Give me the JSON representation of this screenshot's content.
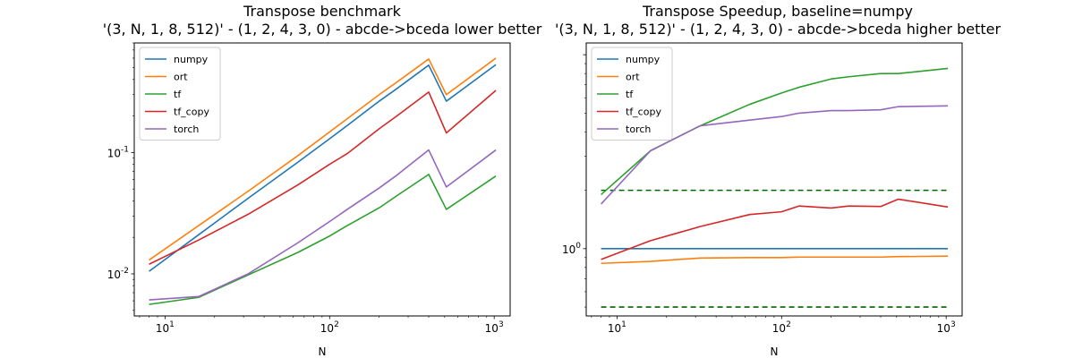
{
  "chart_data": [
    {
      "type": "line",
      "title": "Transpose benchmark\n'(3, N, 1, 8, 512)' - (1, 2, 4, 3, 0) - abcde->bceda lower better",
      "xlabel": "N",
      "ylabel": "",
      "xscale": "log",
      "yscale": "log",
      "xlim": [
        6.5,
        1250
      ],
      "ylim": [
        0.0045,
        0.8
      ],
      "x_ticks": [
        10,
        100,
        1000
      ],
      "x_tick_labels": [
        "10^1",
        "10^2",
        "10^3"
      ],
      "y_ticks": [
        0.01,
        0.1
      ],
      "y_tick_labels": [
        "10^-2",
        "10^-1"
      ],
      "legend": "top-left",
      "grid": false,
      "series": [
        {
          "name": "numpy",
          "color": "#1f77b4",
          "x": [
            8,
            16,
            32,
            64,
            100,
            128,
            200,
            256,
            400,
            512,
            1024
          ],
          "y": [
            0.0105,
            0.021,
            0.042,
            0.083,
            0.13,
            0.167,
            0.265,
            0.336,
            0.525,
            0.265,
            0.53
          ]
        },
        {
          "name": "ort",
          "color": "#ff7f0e",
          "x": [
            8,
            16,
            32,
            64,
            100,
            128,
            200,
            256,
            400,
            512,
            1024
          ],
          "y": [
            0.013,
            0.025,
            0.048,
            0.094,
            0.148,
            0.19,
            0.3,
            0.38,
            0.59,
            0.3,
            0.6
          ]
        },
        {
          "name": "tf",
          "color": "#2ca02c",
          "x": [
            8,
            16,
            32,
            64,
            100,
            128,
            200,
            256,
            400,
            512,
            1024
          ],
          "y": [
            0.0056,
            0.0064,
            0.0098,
            0.015,
            0.0205,
            0.025,
            0.035,
            0.044,
            0.066,
            0.034,
            0.064
          ]
        },
        {
          "name": "tf_copy",
          "color": "#d62728",
          "x": [
            8,
            16,
            32,
            64,
            100,
            128,
            200,
            256,
            400,
            512,
            1024
          ],
          "y": [
            0.012,
            0.019,
            0.031,
            0.054,
            0.08,
            0.098,
            0.157,
            0.2,
            0.315,
            0.145,
            0.325
          ]
        },
        {
          "name": "torch",
          "color": "#9467bd",
          "x": [
            8,
            16,
            32,
            64,
            100,
            128,
            200,
            256,
            400,
            512,
            1024
          ],
          "y": [
            0.0061,
            0.0065,
            0.01,
            0.018,
            0.027,
            0.034,
            0.051,
            0.065,
            0.105,
            0.052,
            0.105
          ]
        }
      ]
    },
    {
      "type": "line",
      "title": "Transpose Speedup, baseline=numpy\n'(3, N, 1, 8, 512)' - (1, 2, 4, 3, 0) - abcde->bceda higher better",
      "xlabel": "N",
      "ylabel": "",
      "xscale": "log",
      "yscale": "log",
      "xlim": [
        6.5,
        1250
      ],
      "ylim": [
        0.45,
        11.5
      ],
      "x_ticks": [
        10,
        100,
        1000
      ],
      "x_tick_labels": [
        "10^1",
        "10^2",
        "10^3"
      ],
      "y_ticks": [
        1
      ],
      "y_tick_labels": [
        "10^0"
      ],
      "legend": "top-left",
      "grid": false,
      "reference_lines": [
        {
          "y": 2.0,
          "color": "#006400",
          "style": "dashed"
        },
        {
          "y": 0.5,
          "color": "#006400",
          "style": "dashed"
        }
      ],
      "series": [
        {
          "name": "numpy",
          "color": "#1f77b4",
          "x": [
            8,
            1024
          ],
          "y": [
            1.0,
            1.0
          ]
        },
        {
          "name": "ort",
          "color": "#ff7f0e",
          "x": [
            8,
            16,
            32,
            64,
            100,
            128,
            200,
            256,
            400,
            512,
            1024
          ],
          "y": [
            0.84,
            0.86,
            0.895,
            0.9,
            0.9,
            0.905,
            0.905,
            0.905,
            0.905,
            0.91,
            0.915
          ]
        },
        {
          "name": "tf",
          "color": "#2ca02c",
          "x": [
            8,
            16,
            32,
            64,
            100,
            128,
            200,
            256,
            400,
            512,
            1024
          ],
          "y": [
            1.9,
            3.2,
            4.3,
            5.55,
            6.35,
            6.8,
            7.5,
            7.7,
            8.0,
            8.0,
            8.5
          ]
        },
        {
          "name": "tf_copy",
          "color": "#d62728",
          "x": [
            8,
            16,
            32,
            64,
            100,
            128,
            200,
            256,
            400,
            512,
            1024
          ],
          "y": [
            0.88,
            1.1,
            1.3,
            1.5,
            1.55,
            1.66,
            1.62,
            1.66,
            1.65,
            1.8,
            1.64
          ]
        },
        {
          "name": "torch",
          "color": "#9467bd",
          "x": [
            8,
            16,
            32,
            64,
            100,
            128,
            200,
            256,
            400,
            512,
            1024
          ],
          "y": [
            1.7,
            3.2,
            4.3,
            4.6,
            4.8,
            5.0,
            5.15,
            5.15,
            5.2,
            5.4,
            5.45
          ]
        }
      ]
    }
  ]
}
